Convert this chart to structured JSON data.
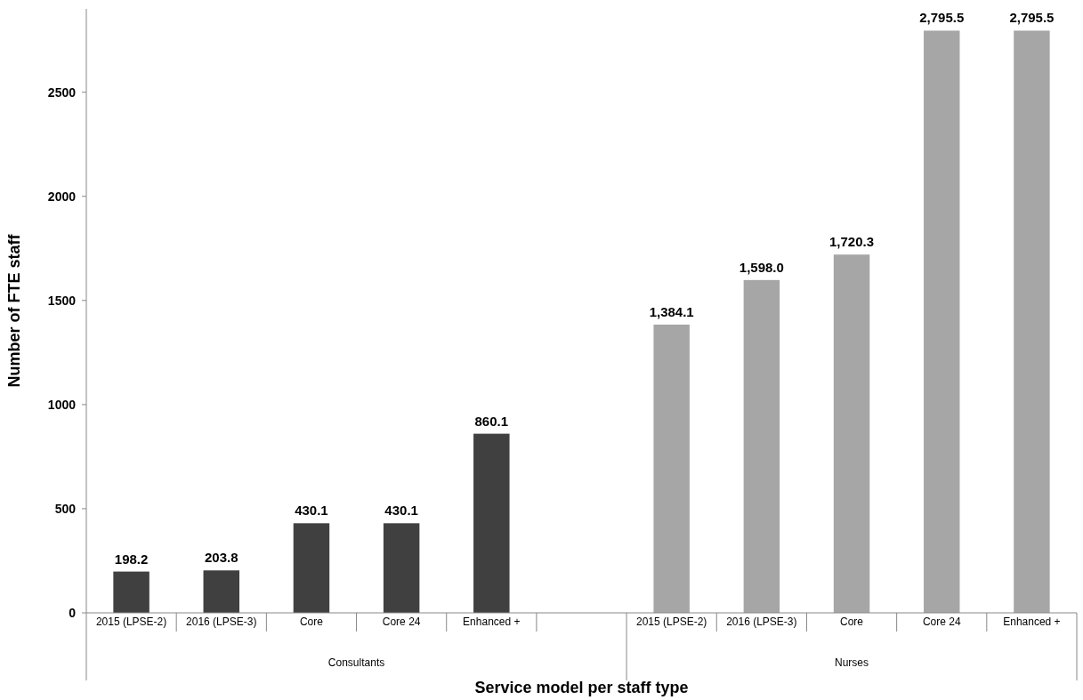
{
  "chart_data": {
    "type": "bar",
    "xlabel": "Service model per staff type",
    "ylabel": "Number of FTE staff",
    "categories": [
      "2015 (LPSE-2)",
      "2016 (LPSE-3)",
      "Core",
      "Core 24",
      "Enhanced +",
      null,
      "2015 (LPSE-2)",
      "2016 (LPSE-3)",
      "Core",
      "Core 24",
      "Enhanced +"
    ],
    "values": [
      198.2,
      203.8,
      430.1,
      430.1,
      860.1,
      null,
      1384.1,
      1598.0,
      1720.3,
      2795.5,
      2795.5
    ],
    "colors": [
      "#404040",
      "#404040",
      "#404040",
      "#404040",
      "#404040",
      null,
      "#a6a6a6",
      "#a6a6a6",
      "#a6a6a6",
      "#a6a6a6",
      "#a6a6a6"
    ],
    "value_labels": [
      "198.2",
      "203.8",
      "430.1",
      "430.1",
      "860.1",
      null,
      "1,384.1",
      "1,598.0",
      "1,720.3",
      "2,795.5",
      "2,795.5"
    ],
    "annotations": [
      "Consultants",
      "Nurses"
    ],
    "ylim": [
      0,
      2900
    ],
    "yticks": [
      0,
      500,
      1000,
      1500,
      2000,
      2500
    ],
    "grid": false
  }
}
